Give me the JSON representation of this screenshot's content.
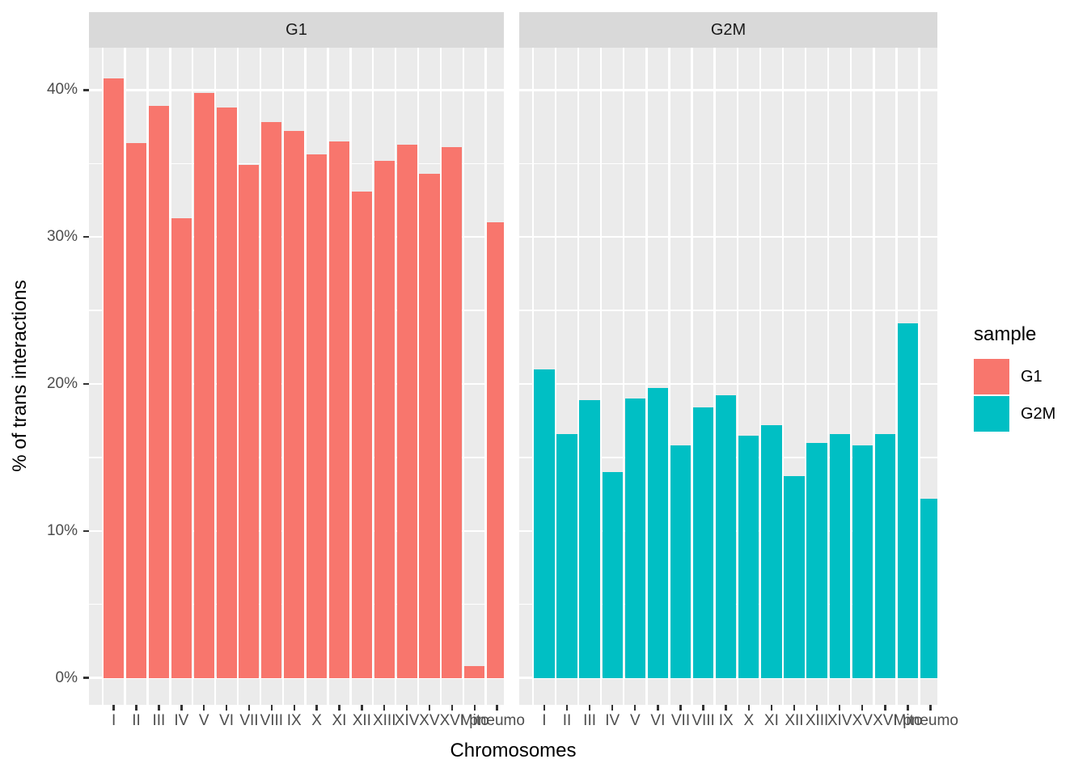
{
  "chart_data": {
    "type": "bar",
    "title": "",
    "xlabel": "Chromosomes",
    "ylabel": "% of trans interactions",
    "categories": [
      "I",
      "II",
      "III",
      "IV",
      "V",
      "VI",
      "VII",
      "VIII",
      "IX",
      "X",
      "XI",
      "XII",
      "XIII",
      "XIV",
      "XV",
      "XVI",
      "Mito",
      "pneumo"
    ],
    "facets": [
      {
        "label": "G1",
        "color": "#F8766D",
        "values": [
          40.8,
          36.4,
          38.9,
          31.3,
          39.8,
          38.8,
          34.9,
          37.8,
          37.2,
          35.6,
          36.5,
          33.1,
          35.2,
          36.3,
          34.3,
          36.1,
          0.8,
          31.0
        ]
      },
      {
        "label": "G2M",
        "color": "#00BFC4",
        "values": [
          21.0,
          16.6,
          18.9,
          14.0,
          19.0,
          19.7,
          15.8,
          18.4,
          19.2,
          16.5,
          17.2,
          13.7,
          16.0,
          16.6,
          15.8,
          16.6,
          24.1,
          12.2
        ]
      }
    ],
    "y_ticks": [
      {
        "label": "0%",
        "value": 0
      },
      {
        "label": "10%",
        "value": 10
      },
      {
        "label": "20%",
        "value": 20
      },
      {
        "label": "30%",
        "value": 30
      },
      {
        "label": "40%",
        "value": 40
      }
    ],
    "y_minor_ticks": [
      5,
      15,
      25,
      35
    ],
    "ylim": [
      -1.84,
      42.88
    ],
    "grid": true,
    "legend": {
      "title": "sample",
      "position": "right",
      "entries": [
        {
          "label": "G1",
          "color": "#F8766D"
        },
        {
          "label": "G2M",
          "color": "#00BFC4"
        }
      ]
    }
  },
  "colors": {
    "panel_background": "#EBEBEB",
    "strip_background": "#D9D9D9",
    "gridline": "#FFFFFF",
    "tick_mark": "#333333",
    "tick_label": "#4D4D4D",
    "title_text": "#000000",
    "bar_g1": "#F8766D",
    "bar_g2m": "#00BFC4"
  }
}
